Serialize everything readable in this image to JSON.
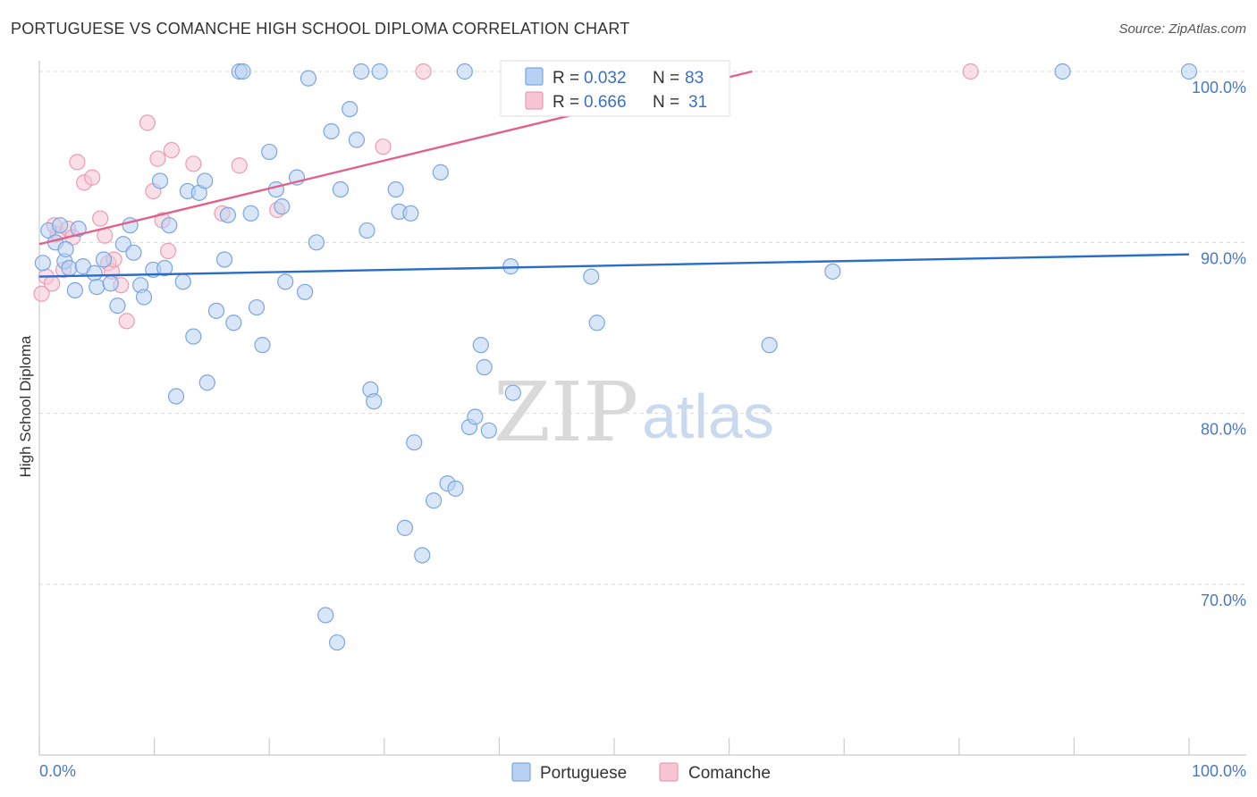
{
  "title": "PORTUGUESE VS COMANCHE HIGH SCHOOL DIPLOMA CORRELATION CHART",
  "source": "Source: ZipAtlas.com",
  "watermark": {
    "zip": "ZIP",
    "atlas": "atlas"
  },
  "colors": {
    "portuguese_fill": "#b8d1f2",
    "portuguese_stroke": "#7aa6e0",
    "portuguese_line": "#2a6dc9",
    "comanche_fill": "#f8c5d3",
    "comanche_stroke": "#ec9bb4",
    "comanche_line": "#e0628a",
    "tick_text": "#4a78c4",
    "grid": "#d9d9d9"
  },
  "legend": {
    "rows": [
      {
        "r_label": "R =",
        "r_value": "0.032",
        "n_label": "N =",
        "n_value": "83"
      },
      {
        "r_label": "R =",
        "r_value": "0.666",
        "n_label": "N =",
        "n_value": "31"
      }
    ]
  },
  "chart_data": {
    "type": "scatter",
    "title": "PORTUGUESE VS COMANCHE HIGH SCHOOL DIPLOMA CORRELATION CHART",
    "xlabel": "",
    "ylabel": "High School Diploma",
    "xlim": [
      0,
      100
    ],
    "ylim": [
      60,
      101.5
    ],
    "x_tick_labels": {
      "left": "0.0%",
      "right": "100.0%"
    },
    "y_ticks": [
      {
        "value": 100,
        "label": "100.0%"
      },
      {
        "value": 90,
        "label": "90.0%"
      },
      {
        "value": 80,
        "label": "80.0%"
      },
      {
        "value": 70,
        "label": "70.0%"
      }
    ],
    "grid": true,
    "legend_position": "top-center",
    "series": [
      {
        "name": "Portuguese",
        "R": 0.032,
        "N": 83,
        "trend": {
          "x": [
            0,
            100
          ],
          "y": [
            88.0,
            89.3
          ]
        },
        "points": [
          [
            0.3,
            88.8
          ],
          [
            0.8,
            90.7
          ],
          [
            1.4,
            90.0
          ],
          [
            1.8,
            91.0
          ],
          [
            2.2,
            88.9
          ],
          [
            2.6,
            88.5
          ],
          [
            2.3,
            89.6
          ],
          [
            3.1,
            87.2
          ],
          [
            3.4,
            90.8
          ],
          [
            3.8,
            88.6
          ],
          [
            4.8,
            88.2
          ],
          [
            5.0,
            87.4
          ],
          [
            5.6,
            89.0
          ],
          [
            6.2,
            87.6
          ],
          [
            6.8,
            86.3
          ],
          [
            7.3,
            89.9
          ],
          [
            7.9,
            91.0
          ],
          [
            8.2,
            89.4
          ],
          [
            8.8,
            87.5
          ],
          [
            9.1,
            86.8
          ],
          [
            9.9,
            88.4
          ],
          [
            10.5,
            93.6
          ],
          [
            10.9,
            88.5
          ],
          [
            11.3,
            91.0
          ],
          [
            11.9,
            81.0
          ],
          [
            12.5,
            87.7
          ],
          [
            12.9,
            93.0
          ],
          [
            13.4,
            84.5
          ],
          [
            13.9,
            92.9
          ],
          [
            14.4,
            93.6
          ],
          [
            14.6,
            81.8
          ],
          [
            15.4,
            86.0
          ],
          [
            16.4,
            91.6
          ],
          [
            16.1,
            89.0
          ],
          [
            16.9,
            85.3
          ],
          [
            17.4,
            100.0
          ],
          [
            17.7,
            100.0
          ],
          [
            18.4,
            91.7
          ],
          [
            18.9,
            86.2
          ],
          [
            19.4,
            84.0
          ],
          [
            20.0,
            95.3
          ],
          [
            20.6,
            93.1
          ],
          [
            21.1,
            92.1
          ],
          [
            21.4,
            87.7
          ],
          [
            22.4,
            93.8
          ],
          [
            23.1,
            87.1
          ],
          [
            23.4,
            99.6
          ],
          [
            24.1,
            90.0
          ],
          [
            25.4,
            96.5
          ],
          [
            26.2,
            93.1
          ],
          [
            27.0,
            97.8
          ],
          [
            27.6,
            96.0
          ],
          [
            28.5,
            90.7
          ],
          [
            28.8,
            81.4
          ],
          [
            29.1,
            80.7
          ],
          [
            29.6,
            100.0
          ],
          [
            31.0,
            93.1
          ],
          [
            31.3,
            91.8
          ],
          [
            32.3,
            91.7
          ],
          [
            32.6,
            78.3
          ],
          [
            31.8,
            73.3
          ],
          [
            33.3,
            71.7
          ],
          [
            34.3,
            74.9
          ],
          [
            34.9,
            94.1
          ],
          [
            35.5,
            75.9
          ],
          [
            36.2,
            75.6
          ],
          [
            37.0,
            100.0
          ],
          [
            37.4,
            79.2
          ],
          [
            37.9,
            79.8
          ],
          [
            38.4,
            84.0
          ],
          [
            38.7,
            82.7
          ],
          [
            39.1,
            79.0
          ],
          [
            41.0,
            88.6
          ],
          [
            41.2,
            81.2
          ],
          [
            48.0,
            88.0
          ],
          [
            48.5,
            85.3
          ],
          [
            63.5,
            84.0
          ],
          [
            69.0,
            88.3
          ],
          [
            89.0,
            100.0
          ],
          [
            100.0,
            100.0
          ],
          [
            24.9,
            68.2
          ],
          [
            25.9,
            66.6
          ],
          [
            28.0,
            100.0
          ]
        ]
      },
      {
        "name": "Comanche",
        "R": 0.666,
        "N": 31,
        "trend": {
          "x": [
            0,
            62
          ],
          "y": [
            89.9,
            100.0
          ]
        },
        "points": [
          [
            0.2,
            87.0
          ],
          [
            0.6,
            88.0
          ],
          [
            1.1,
            87.6
          ],
          [
            1.6,
            90.5
          ],
          [
            2.1,
            88.4
          ],
          [
            2.5,
            90.8
          ],
          [
            2.9,
            90.3
          ],
          [
            3.3,
            94.7
          ],
          [
            3.9,
            93.5
          ],
          [
            4.6,
            93.8
          ],
          [
            5.3,
            91.4
          ],
          [
            5.7,
            90.4
          ],
          [
            6.0,
            88.8
          ],
          [
            6.3,
            88.3
          ],
          [
            7.1,
            87.5
          ],
          [
            7.6,
            85.4
          ],
          [
            9.4,
            97.0
          ],
          [
            9.9,
            93.0
          ],
          [
            10.3,
            94.9
          ],
          [
            10.7,
            91.3
          ],
          [
            11.2,
            89.5
          ],
          [
            11.5,
            95.4
          ],
          [
            13.4,
            94.6
          ],
          [
            15.9,
            91.7
          ],
          [
            17.4,
            94.5
          ],
          [
            20.7,
            91.9
          ],
          [
            29.9,
            95.6
          ],
          [
            33.4,
            100.0
          ],
          [
            81.0,
            100.0
          ],
          [
            1.3,
            91.0
          ],
          [
            6.5,
            89.0
          ]
        ]
      }
    ]
  },
  "bottom_legend": [
    {
      "label": "Portuguese"
    },
    {
      "label": "Comanche"
    }
  ]
}
